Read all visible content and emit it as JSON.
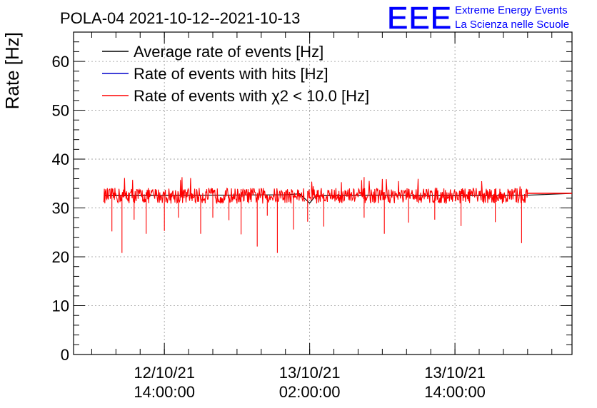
{
  "chart_data": {
    "type": "line",
    "title": "POLA-04 2021-10-12--2021-10-13",
    "ylabel": "Rate [Hz]",
    "xlabel": "",
    "ylim": [
      0,
      66
    ],
    "yticks": [
      0,
      10,
      20,
      30,
      40,
      50,
      60
    ],
    "xlim": [
      "2021-10-12 06:30:00",
      "2021-10-13 23:40:00"
    ],
    "xticks": [
      {
        "value": "2021-10-12 14:00:00",
        "date": "12/10/21",
        "time": "14:00:00"
      },
      {
        "value": "2021-10-13 02:00:00",
        "date": "13/10/21",
        "time": "02:00:00"
      },
      {
        "value": "2021-10-13 14:00:00",
        "date": "13/10/21",
        "time": "14:00:00"
      }
    ],
    "grid": true,
    "legend_position": "top-left",
    "series": [
      {
        "name": "Average rate of events [Hz]",
        "color": "#000000",
        "points": [
          [
            "2021-10-12 09:00:00",
            32.5
          ],
          [
            "2021-10-12 18:00:00",
            32.6
          ],
          [
            "2021-10-13 00:00:00",
            32.7
          ],
          [
            "2021-10-13 01:10:00",
            32.9
          ],
          [
            "2021-10-13 02:00:00",
            31.0
          ],
          [
            "2021-10-13 02:30:00",
            32.5
          ],
          [
            "2021-10-13 08:00:00",
            32.6
          ],
          [
            "2021-10-13 14:00:00",
            32.5
          ],
          [
            "2021-10-13 20:00:00",
            32.6
          ],
          [
            "2021-10-13 23:40:00",
            33.0
          ]
        ]
      },
      {
        "name": "Rate of events with hits [Hz]",
        "color": "#0000cc",
        "points": []
      },
      {
        "name": "Rate of events with χ2 < 10.0 [Hz]",
        "color": "#ff0000",
        "segments": [
          {
            "start": "2021-10-12 09:00:00",
            "end": "2021-10-13 01:35:00",
            "baseline": 32.5,
            "noise": 1.6
          },
          {
            "start": "2021-10-13 01:50:00",
            "end": "2021-10-13 20:00:00",
            "baseline": 32.5,
            "noise": 1.6
          }
        ],
        "dips": [
          [
            "2021-10-12 09:40:00",
            25.2
          ],
          [
            "2021-10-12 10:30:00",
            20.8
          ],
          [
            "2021-10-12 11:30:00",
            27.6
          ],
          [
            "2021-10-12 12:30:00",
            24.7
          ],
          [
            "2021-10-12 14:00:00",
            25.3
          ],
          [
            "2021-10-12 15:10:00",
            28.0
          ],
          [
            "2021-10-12 17:00:00",
            24.7
          ],
          [
            "2021-10-12 18:00:00",
            28.0
          ],
          [
            "2021-10-12 19:20:00",
            27.5
          ],
          [
            "2021-10-12 20:20:00",
            24.6
          ],
          [
            "2021-10-12 21:40:00",
            22.1
          ],
          [
            "2021-10-12 22:30:00",
            28.4
          ],
          [
            "2021-10-12 23:20:00",
            20.8
          ],
          [
            "2021-10-13 00:40:00",
            25.6
          ],
          [
            "2021-10-13 01:50:00",
            27.2
          ],
          [
            "2021-10-13 03:10:00",
            26.2
          ],
          [
            "2021-10-13 06:30:00",
            28.0
          ],
          [
            "2021-10-13 08:10:00",
            24.7
          ],
          [
            "2021-10-13 10:10:00",
            27.0
          ],
          [
            "2021-10-13 12:20:00",
            27.6
          ],
          [
            "2021-10-13 14:30:00",
            26.3
          ],
          [
            "2021-10-13 17:20:00",
            27.1
          ],
          [
            "2021-10-13 19:30:00",
            22.8
          ]
        ],
        "tail": [
          [
            "2021-10-13 20:00:00",
            33.0
          ],
          [
            "2021-10-13 23:40:00",
            33.0
          ]
        ]
      }
    ]
  },
  "logo": {
    "mark": "EEE",
    "line1": "Extreme Energy Events",
    "line2": "La Scienza nelle Scuole",
    "color": "#0000ff"
  }
}
